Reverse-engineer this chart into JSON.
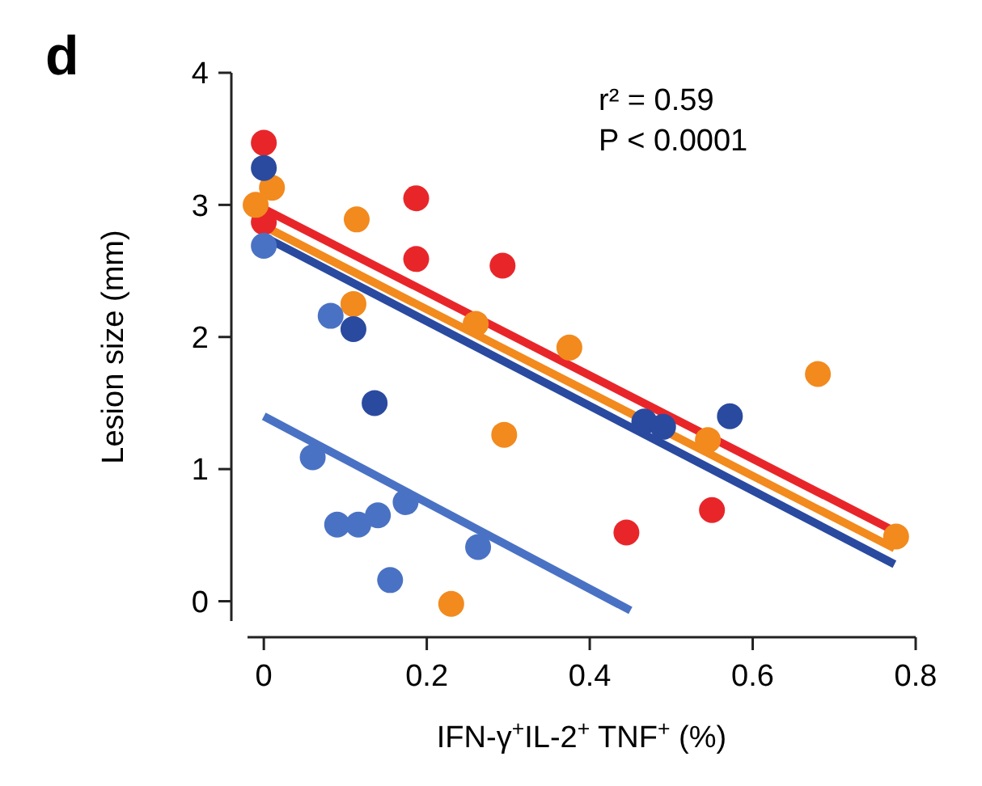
{
  "chart_data": {
    "type": "scatter",
    "xlabel": "IFN-γ$^{+}$IL-2$^{+}$ TNF$^{+}$ (%)",
    "ylabel": "Lesion size (mm)",
    "annotations": [
      "d",
      "r² = 0.59",
      "P < 0.0001"
    ],
    "xlim": [
      -0.02,
      0.8
    ],
    "ylim": [
      -0.15,
      4
    ],
    "xticks": [
      0,
      0.2,
      0.4,
      0.6,
      0.8
    ],
    "yticks": [
      0,
      1,
      2,
      3,
      4
    ],
    "grid": false,
    "marker": "circle",
    "series": [
      {
        "color": "#e8262a",
        "x": [
          0,
          0,
          0.187,
          0.187,
          0.293,
          0.445,
          0.55
        ],
        "values": [
          3.47,
          2.87,
          3.05,
          2.59,
          2.54,
          0.52,
          0.69
        ]
      },
      {
        "color": "#f28a1e",
        "x": [
          0.01,
          -0.01,
          0.114,
          0.11,
          0.26,
          0.295,
          0.23,
          0.375,
          0.68,
          0.545,
          0.776
        ],
        "values": [
          3.13,
          3.0,
          2.89,
          2.25,
          2.1,
          1.26,
          -0.02,
          1.92,
          1.72,
          1.22,
          0.49
        ]
      },
      {
        "color": "#2a4aa0",
        "x": [
          0,
          0.11,
          0.136,
          0.467,
          0.49,
          0.572
        ],
        "values": [
          3.28,
          2.06,
          1.5,
          1.36,
          1.32,
          1.4
        ]
      },
      {
        "color": "#4a72c4",
        "x": [
          0,
          0.082,
          0.06,
          0.09,
          0.116,
          0.14,
          0.174,
          0.263,
          0.155
        ],
        "values": [
          2.69,
          2.16,
          1.09,
          0.58,
          0.58,
          0.65,
          0.75,
          0.41,
          0.16
        ]
      },
      {
        "type": "line",
        "marker": "none",
        "color": "#2a4aa0",
        "x": [
          0,
          0.774
        ],
        "values": [
          2.76,
          0.28
        ]
      },
      {
        "type": "line",
        "marker": "none",
        "color": "#f28a1e",
        "x": [
          0,
          0.774
        ],
        "values": [
          2.84,
          0.4
        ]
      },
      {
        "type": "line",
        "marker": "none",
        "color": "#e8262a",
        "x": [
          0,
          0.774
        ],
        "values": [
          2.97,
          0.53
        ]
      },
      {
        "type": "line",
        "marker": "none",
        "color": "#4a72c4",
        "x": [
          0,
          0.45
        ],
        "values": [
          1.4,
          -0.07
        ]
      }
    ]
  }
}
